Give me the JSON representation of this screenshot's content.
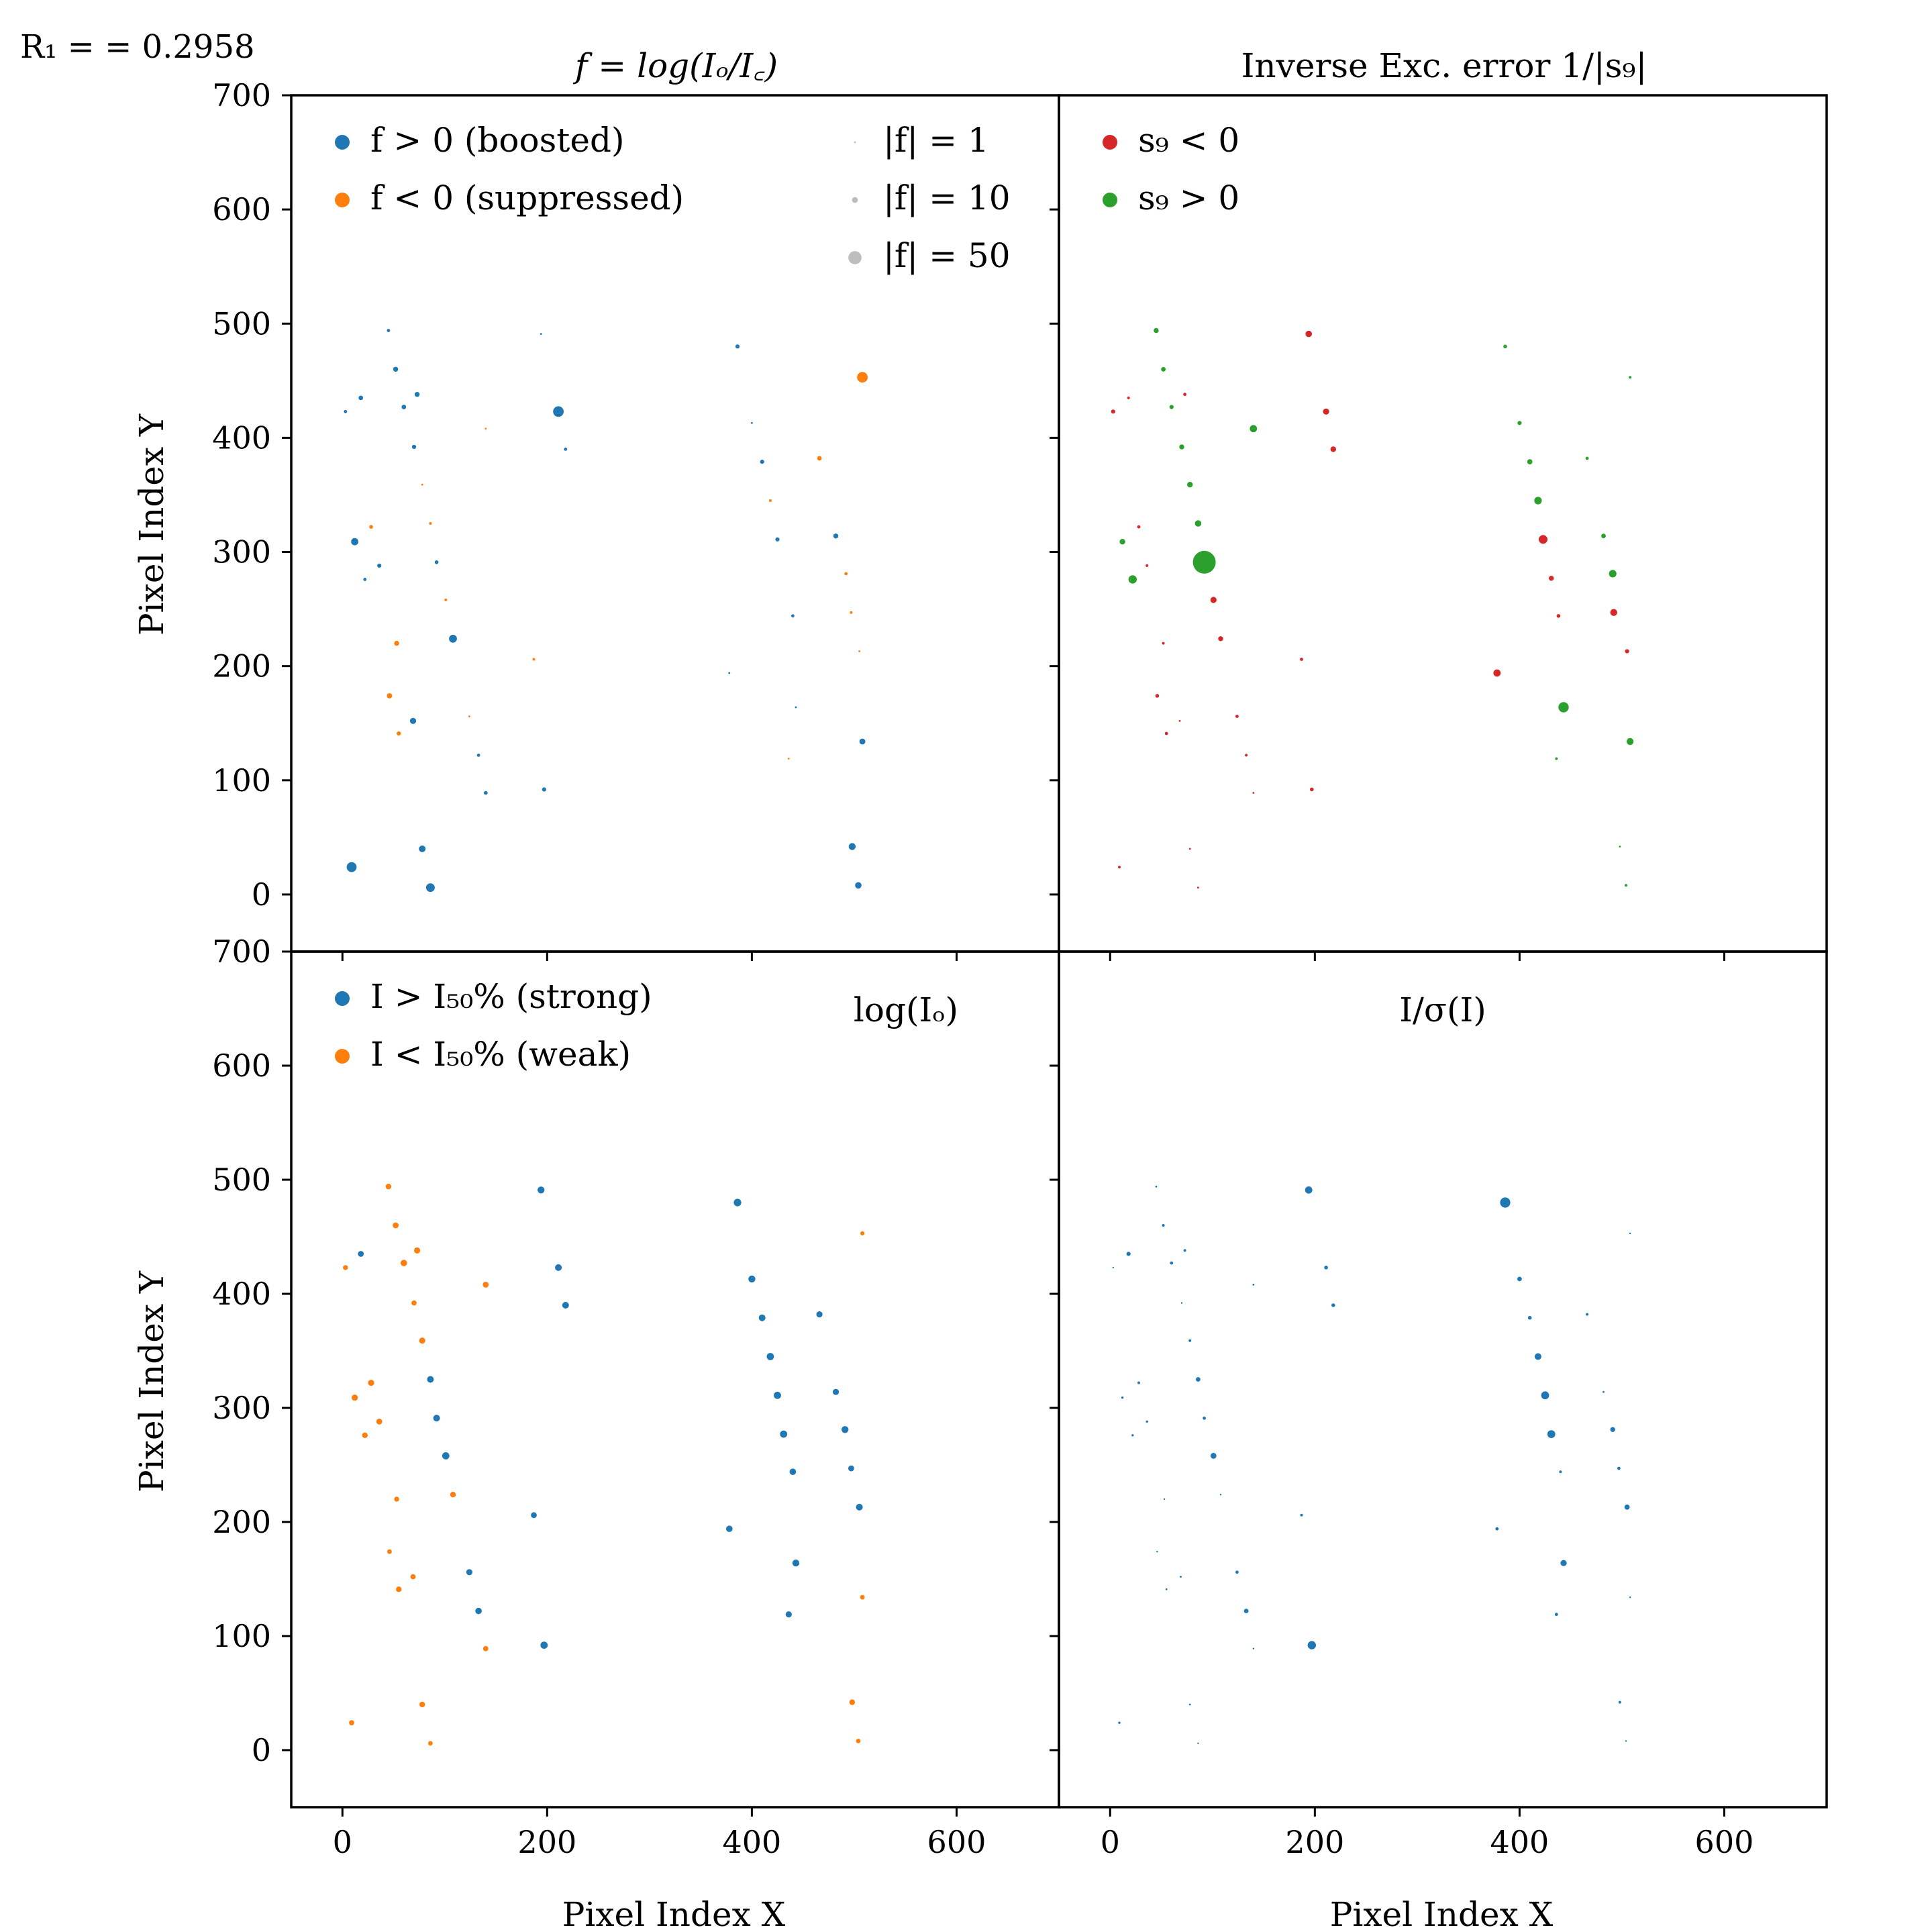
{
  "figure": {
    "r1_label": "R₁ = = 0.2958"
  },
  "chart_data": [
    {
      "id": "f_panel",
      "type": "scatter",
      "title": "f = log(Iₒ/I꜀)",
      "ylabel": "Pixel Index Y",
      "xlabel": "",
      "xlim": [
        -50,
        700
      ],
      "ylim": [
        -50,
        700
      ],
      "grid": false,
      "legend": [
        {
          "label": "f > 0 (boosted)",
          "color": "#1f77b4",
          "placement": "top-left"
        },
        {
          "label": "f < 0 (suppressed)",
          "color": "#ff7f0e",
          "placement": "top-left"
        }
      ],
      "size_legend": [
        {
          "label": "|f| = 1",
          "size": 1
        },
        {
          "label": "|f| = 10",
          "size": 10
        },
        {
          "label": "|f| = 50",
          "size": 50
        }
      ],
      "series": [
        {
          "name": "f > 0 (boosted)",
          "color": "#1f77b4",
          "points": [
            [
              45,
              494,
              3
            ],
            [
              3,
              423,
              3
            ],
            [
              18,
              435,
              6
            ],
            [
              52,
              460,
              7
            ],
            [
              60,
              427,
              6
            ],
            [
              73,
              438,
              7
            ],
            [
              70,
              392,
              5
            ],
            [
              12,
              309,
              15
            ],
            [
              36,
              288,
              5
            ],
            [
              22,
              276,
              3
            ],
            [
              92,
              291,
              4
            ],
            [
              108,
              224,
              18
            ],
            [
              69,
              152,
              11
            ],
            [
              133,
              122,
              3
            ],
            [
              140,
              89,
              4
            ],
            [
              197,
              92,
              5
            ],
            [
              9,
              24,
              28
            ],
            [
              78,
              40,
              13
            ],
            [
              86,
              6,
              22
            ],
            [
              194,
              491,
              1
            ],
            [
              211,
              423,
              32
            ],
            [
              218,
              390,
              3
            ],
            [
              386,
              480,
              5
            ],
            [
              400,
              413,
              1
            ],
            [
              410,
              379,
              5
            ],
            [
              425,
              311,
              5
            ],
            [
              440,
              244,
              3
            ],
            [
              378,
              194,
              1
            ],
            [
              443,
              164,
              1
            ],
            [
              482,
              314,
              7
            ],
            [
              508,
              134,
              10
            ],
            [
              498,
              42,
              14
            ],
            [
              504,
              8,
              12
            ]
          ]
        },
        {
          "name": "f < 0 (suppressed)",
          "color": "#ff7f0e",
          "points": [
            [
              140,
              408,
              1
            ],
            [
              78,
              359,
              1
            ],
            [
              86,
              325,
              2
            ],
            [
              28,
              322,
              4
            ],
            [
              101,
              258,
              2
            ],
            [
              53,
              220,
              7
            ],
            [
              187,
              206,
              2
            ],
            [
              46,
              174,
              8
            ],
            [
              124,
              156,
              1
            ],
            [
              55,
              141,
              5
            ],
            [
              466,
              382,
              6
            ],
            [
              418,
              345,
              2
            ],
            [
              492,
              281,
              3
            ],
            [
              497,
              247,
              2
            ],
            [
              505,
              213,
              1
            ],
            [
              436,
              119,
              1
            ],
            [
              508,
              453,
              32
            ]
          ]
        }
      ]
    },
    {
      "id": "sg_panel",
      "type": "scatter",
      "title": "Inverse Exc. error 1/|s₉|",
      "xlabel": "",
      "ylabel": "",
      "xlim": [
        -50,
        700
      ],
      "ylim": [
        -50,
        700
      ],
      "grid": false,
      "legend": [
        {
          "label": "s₉ < 0",
          "color": "#d62728",
          "placement": "top-left"
        },
        {
          "label": "s₉ > 0",
          "color": "#2ca02c",
          "placement": "top-left"
        }
      ],
      "series": [
        {
          "name": "s₉ < 0",
          "color": "#d62728",
          "points": [
            [
              194,
              491,
              12
            ],
            [
              3,
              423,
              5
            ],
            [
              18,
              435,
              2
            ],
            [
              73,
              438,
              3
            ],
            [
              211,
              423,
              11
            ],
            [
              218,
              390,
              9
            ],
            [
              28,
              322,
              3
            ],
            [
              36,
              288,
              2
            ],
            [
              101,
              258,
              11
            ],
            [
              108,
              224,
              7
            ],
            [
              52,
              220,
              2
            ],
            [
              187,
              206,
              3
            ],
            [
              46,
              174,
              4
            ],
            [
              68,
              152,
              1
            ],
            [
              124,
              156,
              3
            ],
            [
              55,
              141,
              3
            ],
            [
              133,
              122,
              2
            ],
            [
              140,
              89,
              1
            ],
            [
              197,
              92,
              4
            ],
            [
              9,
              24,
              2
            ],
            [
              78,
              40,
              1
            ],
            [
              86,
              6,
              1
            ],
            [
              423,
              311,
              22
            ],
            [
              431,
              277,
              7
            ],
            [
              438,
              244,
              4
            ],
            [
              378,
              194,
              15
            ],
            [
              492,
              247,
              14
            ],
            [
              505,
              213,
              5
            ]
          ]
        },
        {
          "name": "s₉ > 0",
          "color": "#2ca02c",
          "points": [
            [
              45,
              494,
              7
            ],
            [
              52,
              460,
              6
            ],
            [
              60,
              427,
              5
            ],
            [
              70,
              392,
              7
            ],
            [
              140,
              408,
              15
            ],
            [
              78,
              359,
              9
            ],
            [
              86,
              325,
              12
            ],
            [
              12,
              309,
              9
            ],
            [
              92,
              291,
              150
            ],
            [
              22,
              276,
              20
            ],
            [
              386,
              480,
              4
            ],
            [
              400,
              413,
              5
            ],
            [
              410,
              379,
              8
            ],
            [
              418,
              345,
              16
            ],
            [
              482,
              314,
              6
            ],
            [
              491,
              281,
              16
            ],
            [
              466,
              382,
              3
            ],
            [
              443,
              164,
              31
            ],
            [
              436,
              119,
              2
            ],
            [
              508,
              134,
              14
            ],
            [
              508,
              453,
              2
            ],
            [
              498,
              42,
              1
            ],
            [
              504,
              8,
              2
            ]
          ]
        }
      ]
    },
    {
      "id": "logio_panel",
      "type": "scatter",
      "title": "log(Iₒ)",
      "xlabel": "Pixel Index X",
      "ylabel": "Pixel Index Y",
      "xlim": [
        -50,
        700
      ],
      "ylim": [
        -50,
        700
      ],
      "grid": false,
      "legend": [
        {
          "label": "I > I₅₀% (strong)",
          "color": "#1f77b4",
          "placement": "top-left"
        },
        {
          "label": "I < I₅₀% (weak)",
          "color": "#ff7f0e",
          "placement": "top-left"
        }
      ],
      "series": [
        {
          "name": "I > I₅₀% (strong)",
          "color": "#1f77b4",
          "points": [
            [
              18,
              435,
              10
            ],
            [
              194,
              491,
              14
            ],
            [
              211,
              423,
              13
            ],
            [
              218,
              390,
              13
            ],
            [
              86,
              325,
              13
            ],
            [
              92,
              291,
              13
            ],
            [
              101,
              258,
              15
            ],
            [
              187,
              206,
              10
            ],
            [
              124,
              156,
              11
            ],
            [
              133,
              122,
              12
            ],
            [
              197,
              92,
              15
            ],
            [
              386,
              480,
              16
            ],
            [
              400,
              413,
              14
            ],
            [
              410,
              379,
              13
            ],
            [
              466,
              382,
              11
            ],
            [
              418,
              345,
              15
            ],
            [
              425,
              311,
              15
            ],
            [
              431,
              277,
              15
            ],
            [
              482,
              314,
              11
            ],
            [
              491,
              281,
              14
            ],
            [
              497,
              247,
              10
            ],
            [
              440,
              244,
              12
            ],
            [
              505,
              213,
              13
            ],
            [
              378,
              194,
              12
            ],
            [
              443,
              164,
              14
            ],
            [
              436,
              119,
              11
            ]
          ]
        },
        {
          "name": "I < I₅₀% (weak)",
          "color": "#ff7f0e",
          "points": [
            [
              45,
              494,
              9
            ],
            [
              52,
              460,
              10
            ],
            [
              3,
              423,
              7
            ],
            [
              60,
              427,
              12
            ],
            [
              73,
              438,
              11
            ],
            [
              70,
              392,
              8
            ],
            [
              140,
              408,
              10
            ],
            [
              78,
              359,
              11
            ],
            [
              28,
              322,
              11
            ],
            [
              12,
              309,
              11
            ],
            [
              36,
              288,
              10
            ],
            [
              22,
              276,
              9
            ],
            [
              53,
              220,
              7
            ],
            [
              108,
              224,
              9
            ],
            [
              46,
              174,
              6
            ],
            [
              69,
              152,
              8
            ],
            [
              55,
              141,
              9
            ],
            [
              140,
              89,
              8
            ],
            [
              9,
              24,
              8
            ],
            [
              78,
              40,
              9
            ],
            [
              86,
              6,
              6
            ],
            [
              508,
              453,
              5
            ],
            [
              508,
              134,
              6
            ],
            [
              498,
              42,
              9
            ],
            [
              504,
              8,
              6
            ]
          ]
        }
      ]
    },
    {
      "id": "isig_panel",
      "type": "scatter",
      "title": "I/σ(I)",
      "xlabel": "Pixel Index X",
      "ylabel": "",
      "xlim": [
        -50,
        700
      ],
      "ylim": [
        -50,
        700
      ],
      "grid": false,
      "series": [
        {
          "name": "",
          "color": "#1f77b4",
          "points": [
            [
              45,
              494,
              1
            ],
            [
              52,
              460,
              2
            ],
            [
              18,
              435,
              5
            ],
            [
              60,
              427,
              3
            ],
            [
              73,
              438,
              2
            ],
            [
              3,
              423,
              0.3
            ],
            [
              70,
              392,
              0.5
            ],
            [
              140,
              408,
              1
            ],
            [
              78,
              359,
              2
            ],
            [
              86,
              325,
              6
            ],
            [
              28,
              322,
              2
            ],
            [
              12,
              309,
              1.5
            ],
            [
              36,
              288,
              1.5
            ],
            [
              22,
              276,
              1.5
            ],
            [
              92,
              291,
              3
            ],
            [
              101,
              258,
              10
            ],
            [
              108,
              224,
              0.5
            ],
            [
              53,
              220,
              0.3
            ],
            [
              46,
              174,
              0.3
            ],
            [
              69,
              152,
              1
            ],
            [
              55,
              141,
              1
            ],
            [
              124,
              156,
              3
            ],
            [
              133,
              122,
              6
            ],
            [
              140,
              89,
              0.5
            ],
            [
              197,
              92,
              20
            ],
            [
              9,
              24,
              1.5
            ],
            [
              78,
              40,
              1
            ],
            [
              86,
              6,
              0.5
            ],
            [
              194,
              491,
              15
            ],
            [
              211,
              423,
              4
            ],
            [
              218,
              390,
              4
            ],
            [
              187,
              206,
              2
            ],
            [
              386,
              480,
              30
            ],
            [
              400,
              413,
              6
            ],
            [
              410,
              379,
              4
            ],
            [
              466,
              382,
              2
            ],
            [
              418,
              345,
              13
            ],
            [
              425,
              311,
              18
            ],
            [
              431,
              277,
              18
            ],
            [
              482,
              314,
              1
            ],
            [
              491,
              281,
              7
            ],
            [
              497,
              247,
              3
            ],
            [
              440,
              244,
              2
            ],
            [
              505,
              213,
              8
            ],
            [
              378,
              194,
              3
            ],
            [
              443,
              164,
              11
            ],
            [
              436,
              119,
              3
            ],
            [
              508,
              453,
              0.1
            ],
            [
              508,
              134,
              0.5
            ],
            [
              498,
              42,
              2
            ],
            [
              504,
              8,
              0.5
            ]
          ]
        }
      ]
    }
  ]
}
